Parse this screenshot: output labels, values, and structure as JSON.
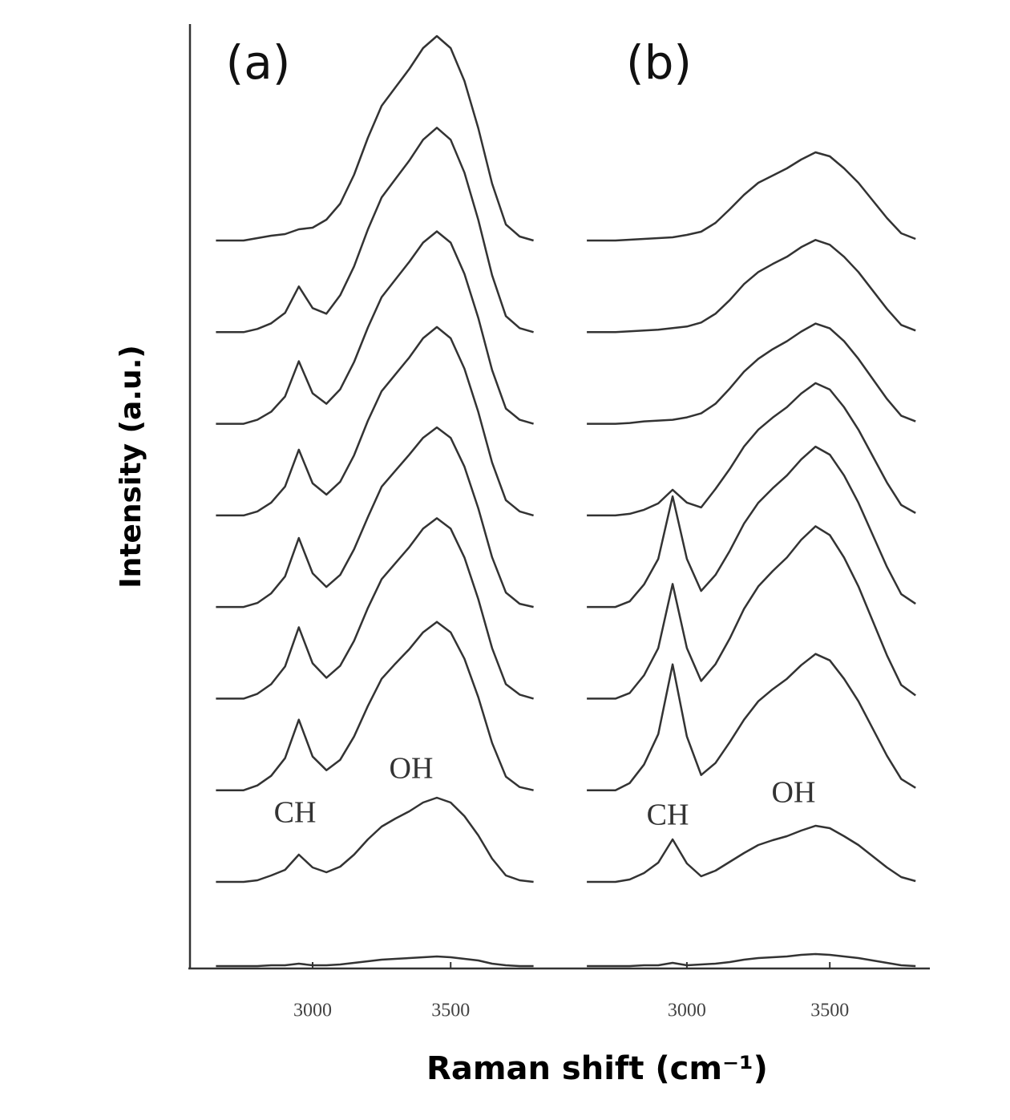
{
  "y_label": "Intensity (a.u.)",
  "x_label": "Raman shift (cm⁻¹)",
  "chart_data": [
    {
      "type": "line",
      "title": "(a)",
      "xlim": [
        2550,
        3900
      ],
      "xticks": [
        3000,
        3500
      ],
      "annotations": [
        "CH",
        "OH"
      ],
      "x": [
        2650,
        2700,
        2750,
        2800,
        2850,
        2900,
        2950,
        3000,
        3050,
        3100,
        3150,
        3200,
        3250,
        3300,
        3350,
        3400,
        3450,
        3500,
        3550,
        3600,
        3650,
        3700,
        3750,
        3800
      ],
      "series": [
        {
          "color": "#333333",
          "values": [
            0,
            0,
            0,
            0,
            1,
            1,
            3,
            1,
            1,
            2,
            4,
            6,
            8,
            9,
            10,
            11,
            12,
            11,
            9,
            7,
            3,
            1,
            0,
            0
          ]
        },
        {
          "color": "#333333",
          "values": [
            0,
            0,
            0,
            2,
            8,
            15,
            34,
            18,
            12,
            19,
            34,
            53,
            69,
            79,
            88,
            99,
            105,
            99,
            82,
            58,
            29,
            8,
            2,
            0
          ]
        },
        {
          "color": "#333333",
          "values": [
            0,
            0,
            0,
            6,
            18,
            40,
            88,
            42,
            25,
            38,
            67,
            105,
            139,
            158,
            176,
            197,
            210,
            197,
            164,
            116,
            59,
            17,
            4,
            0
          ]
        },
        {
          "color": "#333333",
          "values": [
            0,
            0,
            0,
            6,
            18,
            40,
            89,
            44,
            26,
            41,
            72,
            113,
            149,
            169,
            189,
            212,
            225,
            212,
            176,
            124,
            63,
            18,
            5,
            0
          ]
        },
        {
          "color": "#333333",
          "values": [
            0,
            0,
            0,
            5,
            17,
            38,
            86,
            42,
            25,
            40,
            72,
            112,
            150,
            170,
            190,
            211,
            224,
            211,
            175,
            123,
            62,
            18,
            4,
            0
          ]
        },
        {
          "color": "#333333",
          "values": [
            0,
            0,
            0,
            5,
            16,
            36,
            82,
            40,
            26,
            42,
            75,
            118,
            155,
            176,
            197,
            221,
            235,
            221,
            183,
            129,
            66,
            19,
            5,
            0
          ]
        },
        {
          "color": "#333333",
          "values": [
            0,
            0,
            0,
            5,
            15,
            34,
            78,
            38,
            25,
            43,
            77,
            120,
            158,
            180,
            202,
            226,
            240,
            226,
            187,
            132,
            67,
            19,
            5,
            0
          ]
        },
        {
          "color": "#333333",
          "values": [
            0,
            0,
            0,
            4,
            11,
            24,
            57,
            30,
            23,
            46,
            82,
            128,
            168,
            191,
            214,
            240,
            255,
            240,
            199,
            140,
            71,
            20,
            5,
            0
          ]
        },
        {
          "color": "#333333",
          "values": [
            0,
            0,
            0,
            3,
            6,
            8,
            14,
            16,
            26,
            46,
            82,
            128,
            168,
            191,
            214,
            240,
            255,
            240,
            199,
            140,
            71,
            20,
            5,
            0
          ]
        }
      ]
    },
    {
      "type": "line",
      "title": "(b)",
      "xlim": [
        2560,
        3850
      ],
      "xticks": [
        3000,
        3500
      ],
      "annotations": [
        "CH",
        "OH"
      ],
      "x": [
        2650,
        2700,
        2750,
        2800,
        2850,
        2900,
        2950,
        3000,
        3050,
        3100,
        3150,
        3200,
        3250,
        3300,
        3350,
        3400,
        3450,
        3500,
        3550,
        3600,
        3650,
        3700,
        3750,
        3800
      ],
      "series": [
        {
          "color": "#333333",
          "values": [
            0,
            0,
            0,
            0,
            1,
            1,
            4,
            1,
            2,
            3,
            5,
            8,
            10,
            11,
            12,
            14,
            15,
            14,
            12,
            10,
            7,
            4,
            1,
            0
          ]
        },
        {
          "color": "#333333",
          "values": [
            0,
            0,
            0,
            3,
            11,
            24,
            53,
            23,
            7,
            14,
            25,
            36,
            46,
            52,
            57,
            64,
            70,
            67,
            57,
            46,
            32,
            18,
            6,
            1
          ]
        },
        {
          "color": "#333333",
          "values": [
            0,
            0,
            0,
            9,
            32,
            70,
            157,
            67,
            19,
            34,
            60,
            88,
            111,
            126,
            139,
            156,
            170,
            162,
            139,
            111,
            77,
            43,
            14,
            3
          ]
        },
        {
          "color": "#333333",
          "values": [
            0,
            0,
            0,
            7,
            29,
            63,
            143,
            63,
            22,
            43,
            75,
            112,
            140,
            159,
            176,
            198,
            215,
            204,
            176,
            140,
            97,
            54,
            17,
            4
          ]
        },
        {
          "color": "#333333",
          "values": [
            0,
            0,
            0,
            7,
            28,
            60,
            138,
            60,
            20,
            40,
            70,
            104,
            130,
            148,
            164,
            184,
            200,
            190,
            164,
            130,
            90,
            50,
            16,
            4
          ]
        },
        {
          "color": "#333333",
          "values": [
            0,
            0,
            0,
            2,
            7,
            15,
            32,
            16,
            10,
            33,
            58,
            86,
            107,
            122,
            135,
            152,
            165,
            157,
            135,
            107,
            74,
            41,
            13,
            3
          ]
        },
        {
          "color": "#333333",
          "values": [
            0,
            0,
            0,
            1,
            3,
            4,
            5,
            8,
            13,
            25,
            44,
            65,
            81,
            93,
            103,
            115,
            125,
            119,
            103,
            81,
            56,
            31,
            10,
            3
          ]
        },
        {
          "color": "#333333",
          "values": [
            0,
            0,
            0,
            1,
            2,
            3,
            5,
            7,
            12,
            23,
            40,
            60,
            75,
            85,
            94,
            106,
            115,
            109,
            94,
            75,
            52,
            29,
            9,
            2
          ]
        },
        {
          "color": "#333333",
          "values": [
            0,
            0,
            0,
            1,
            2,
            3,
            4,
            7,
            11,
            22,
            39,
            57,
            72,
            81,
            90,
            101,
            110,
            105,
            90,
            72,
            50,
            28,
            9,
            2
          ]
        }
      ]
    }
  ]
}
